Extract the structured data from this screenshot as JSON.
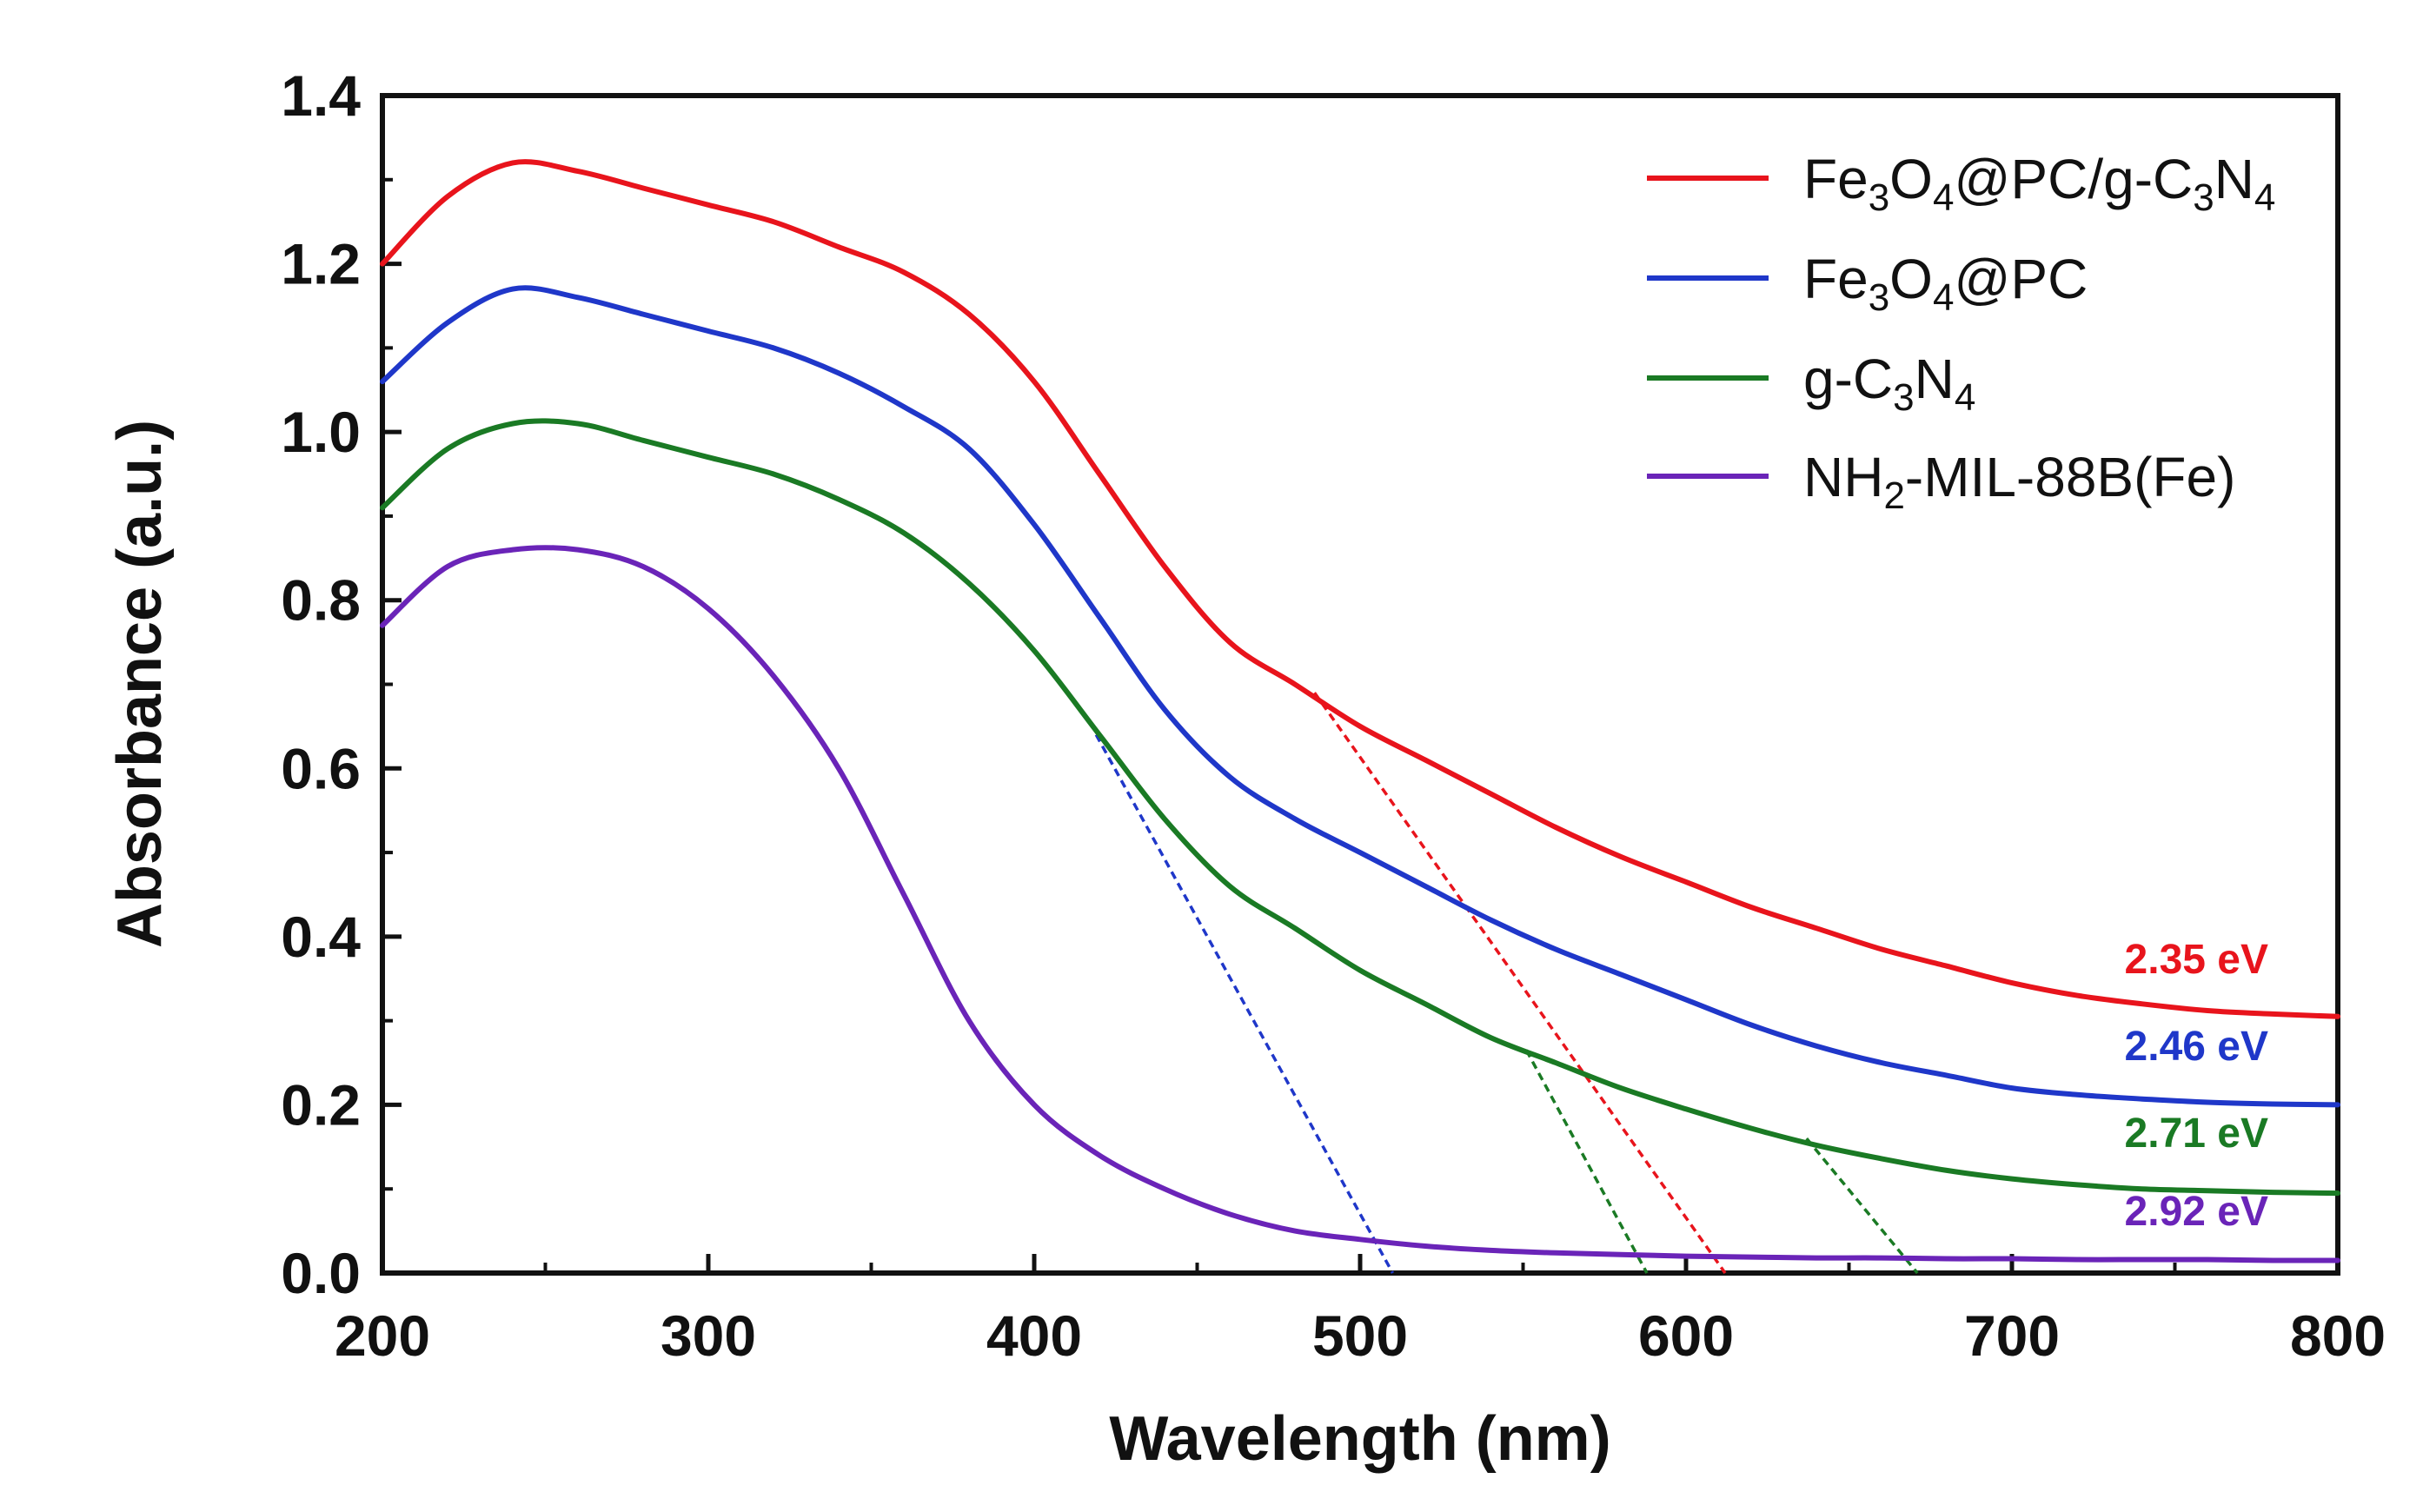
{
  "chart_data": {
    "type": "line",
    "title": "",
    "xlabel": "Wavelength (nm)",
    "ylabel": "Absorbance (a.u.)",
    "xlim": [
      200,
      800
    ],
    "ylim": [
      0,
      1.4
    ],
    "xticks": [
      "200",
      "300",
      "400",
      "500",
      "600",
      "700",
      "800"
    ],
    "yticks": [
      "0.0",
      "0.2",
      "0.4",
      "0.6",
      "0.8",
      "1.0",
      "1.2",
      "1.4"
    ],
    "legend_position": "top-right",
    "x": [
      200,
      220,
      240,
      260,
      280,
      300,
      320,
      340,
      360,
      380,
      400,
      420,
      440,
      460,
      480,
      500,
      520,
      540,
      560,
      580,
      600,
      620,
      640,
      660,
      680,
      700,
      720,
      740,
      760,
      780,
      800
    ],
    "series": [
      {
        "name": "Fe3O4@PC/g-C3N4",
        "legend": {
          "a": "Fe",
          "s1": "3",
          "b": "O",
          "s2": "4",
          "c": "@PC/g-C",
          "s3": "3",
          "d": "N",
          "s4": "4"
        },
        "color": "#e8141c",
        "gap_label": "2.35 eV",
        "values": [
          1.2,
          1.28,
          1.32,
          1.31,
          1.29,
          1.27,
          1.25,
          1.22,
          1.19,
          1.14,
          1.06,
          0.95,
          0.84,
          0.75,
          0.7,
          0.65,
          0.61,
          0.57,
          0.53,
          0.495,
          0.465,
          0.435,
          0.41,
          0.385,
          0.365,
          0.345,
          0.33,
          0.32,
          0.312,
          0.308,
          0.305
        ]
      },
      {
        "name": "Fe3O4@PC",
        "legend": {
          "a": "Fe",
          "s1": "3",
          "b": "O",
          "s2": "4",
          "c": "@PC"
        },
        "color": "#1f37c9",
        "gap_label": "2.46 eV",
        "values": [
          1.06,
          1.13,
          1.17,
          1.16,
          1.14,
          1.12,
          1.1,
          1.07,
          1.03,
          0.98,
          0.89,
          0.78,
          0.67,
          0.59,
          0.54,
          0.5,
          0.46,
          0.42,
          0.385,
          0.355,
          0.325,
          0.295,
          0.27,
          0.25,
          0.235,
          0.22,
          0.212,
          0.207,
          0.203,
          0.201,
          0.2
        ]
      },
      {
        "name": "g-C3N4",
        "legend": {
          "a": "g-C",
          "s1": "3",
          "b": "N",
          "s2": "4"
        },
        "color": "#1a7a24",
        "gap_label": "2.71 eV",
        "values": [
          0.91,
          0.98,
          1.01,
          1.01,
          0.99,
          0.97,
          0.95,
          0.92,
          0.88,
          0.82,
          0.74,
          0.64,
          0.54,
          0.46,
          0.41,
          0.36,
          0.32,
          0.28,
          0.25,
          0.22,
          0.195,
          0.172,
          0.152,
          0.136,
          0.122,
          0.112,
          0.105,
          0.1,
          0.098,
          0.096,
          0.095
        ]
      },
      {
        "name": "NH2-MIL-88B(Fe)",
        "legend": {
          "a": "NH",
          "s1": "2",
          "b": "-MIL-88B(Fe)"
        },
        "color": "#6a24b8",
        "gap_label": "2.92 eV",
        "values": [
          0.77,
          0.84,
          0.86,
          0.86,
          0.84,
          0.79,
          0.71,
          0.6,
          0.45,
          0.3,
          0.2,
          0.14,
          0.1,
          0.07,
          0.05,
          0.04,
          0.032,
          0.027,
          0.024,
          0.022,
          0.02,
          0.019,
          0.018,
          0.018,
          0.017,
          0.017,
          0.016,
          0.016,
          0.016,
          0.015,
          0.015
        ]
      }
    ],
    "tangent_lines": [
      {
        "color": "#e8141c",
        "from": [
          486,
          0.69
        ],
        "to": [
          612,
          0.0
        ]
      },
      {
        "color": "#1f37c9",
        "from": [
          419,
          0.64
        ],
        "to": [
          510,
          0.0
        ]
      },
      {
        "color": "#1a7a24",
        "from": [
          551,
          0.265
        ],
        "to": [
          588,
          0.0
        ]
      },
      {
        "color": "#1a7a24",
        "from": [
          637,
          0.16
        ],
        "to": [
          671,
          0.0
        ]
      }
    ]
  }
}
